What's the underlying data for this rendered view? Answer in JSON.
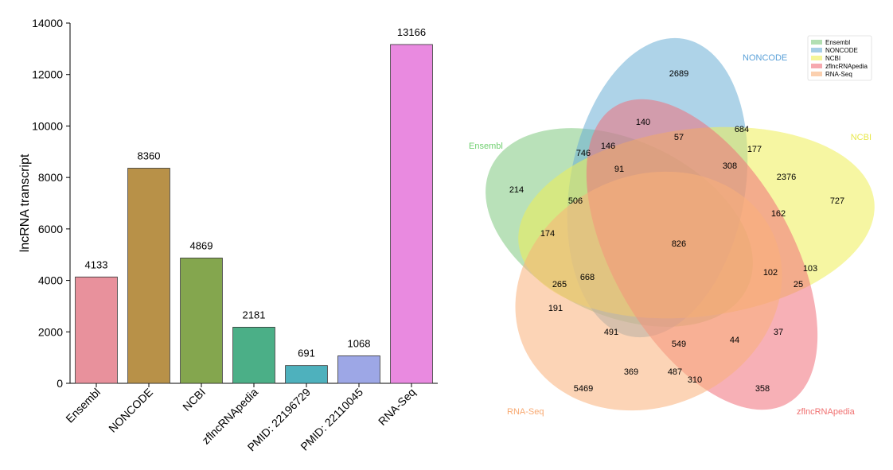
{
  "chart_data": [
    {
      "type": "bar",
      "categories": [
        "Ensembl",
        "NONCODE",
        "NCBI",
        "zflncRNApedia",
        "PMID: 22196729",
        "PMID: 22110045",
        "RNA-Seq"
      ],
      "values": [
        4133,
        8360,
        4869,
        2181,
        691,
        1068,
        13166
      ],
      "value_labels": [
        "4133",
        "8360",
        "4869",
        "2181",
        "691",
        "1068",
        "13166"
      ],
      "colors": [
        "#e8919c",
        "#b89148",
        "#84a64e",
        "#4baf87",
        "#4eb1bd",
        "#9da7e6",
        "#e98ae0"
      ],
      "ylabel": "lncRNA transcript",
      "ylim": [
        0,
        14000
      ],
      "yticks": [
        0,
        2000,
        4000,
        6000,
        8000,
        10000,
        12000,
        14000
      ],
      "grid": false
    },
    {
      "type": "venn",
      "sets": [
        {
          "name": "Ensembl",
          "color": "#7fc97f"
        },
        {
          "name": "NONCODE",
          "color": "#6baed6"
        },
        {
          "name": "NCBI",
          "color": "#eeee55"
        },
        {
          "name": "zflncRNApedia",
          "color": "#f0707a"
        },
        {
          "name": "RNA-Seq",
          "color": "#f9b07a"
        }
      ],
      "legend_position": "top-right",
      "regions": [
        {
          "sets": [
            "NONCODE"
          ],
          "value": 2689
        },
        {
          "sets": [
            "Ensembl"
          ],
          "value": 214
        },
        {
          "sets": [
            "NCBI"
          ],
          "value": 727
        },
        {
          "sets": [
            "RNA-Seq"
          ],
          "value": 5469
        },
        {
          "sets": [
            "zflncRNApedia"
          ],
          "value": 358
        },
        {
          "sets": [
            "NONCODE",
            "zflncRNApedia"
          ],
          "value": 140
        },
        {
          "sets": [
            "NONCODE",
            "NCBI"
          ],
          "value": 684
        },
        {
          "sets": [
            "NONCODE",
            "NCBI",
            "zflncRNApedia"
          ],
          "value": 57
        },
        {
          "sets": [
            "NONCODE",
            "Ensembl"
          ],
          "value": 746
        },
        {
          "sets": [
            "NONCODE",
            "Ensembl",
            "zflncRNApedia"
          ],
          "value": 146
        },
        {
          "sets": [
            "NONCODE",
            "NCBI",
            "Ensembl"
          ],
          "value": 177
        },
        {
          "sets": [
            "NONCODE",
            "NCBI",
            "Ensembl",
            "zflncRNApedia"
          ],
          "value": 308
        },
        {
          "sets": [
            "NONCODE",
            "Ensembl",
            "zflncRNApedia",
            "RNA-Seq"
          ],
          "value": 91
        },
        {
          "sets": [
            "NCBI",
            "zflncRNApedia"
          ],
          "value": 2376
        },
        {
          "sets": [
            "Ensembl",
            "NCBI"
          ],
          "value": 506
        },
        {
          "sets": [
            "NCBI",
            "zflncRNApedia",
            "RNA-Seq"
          ],
          "value": 162
        },
        {
          "sets": [
            "Ensembl",
            "NCBI",
            "RNA-Seq"
          ],
          "value": 174
        },
        {
          "sets": [
            "Ensembl",
            "NONCODE",
            "NCBI",
            "zflncRNApedia",
            "RNA-Seq"
          ],
          "value": 826
        },
        {
          "sets": [
            "Ensembl",
            "NCBI",
            "RNA-Seq",
            "zflncRNApedia"
          ],
          "value": 668
        },
        {
          "sets": [
            "NCBI",
            "zflncRNApedia",
            "RNA-Seq",
            "NONCODE"
          ],
          "value": 102
        },
        {
          "sets": [
            "NCBI",
            "RNA-Seq"
          ],
          "value": 103
        },
        {
          "sets": [
            "NCBI",
            "zflncRNApedia",
            "RNA-Seq",
            "Ensembl"
          ],
          "value": 25
        },
        {
          "sets": [
            "Ensembl",
            "RNA-Seq",
            "NCBI"
          ],
          "value": 265
        },
        {
          "sets": [
            "Ensembl",
            "RNA-Seq"
          ],
          "value": 191
        },
        {
          "sets": [
            "Ensembl",
            "RNA-Seq",
            "zflncRNApedia"
          ],
          "value": 491
        },
        {
          "sets": [
            "Ensembl",
            "RNA-Seq",
            "zflncRNApedia",
            "NONCODE"
          ],
          "value": 549
        },
        {
          "sets": [
            "zflncRNApedia",
            "RNA-Seq",
            "NONCODE"
          ],
          "value": 44
        },
        {
          "sets": [
            "zflncRNApedia",
            "RNA-Seq"
          ],
          "value": 37
        },
        {
          "sets": [
            "Ensembl",
            "RNA-Seq",
            "NONCODE"
          ],
          "value": 369
        },
        {
          "sets": [
            "RNA-Seq",
            "NONCODE"
          ],
          "value": 487
        },
        {
          "sets": [
            "RNA-Seq",
            "NONCODE",
            "zflncRNApedia"
          ],
          "value": 310
        }
      ]
    }
  ]
}
